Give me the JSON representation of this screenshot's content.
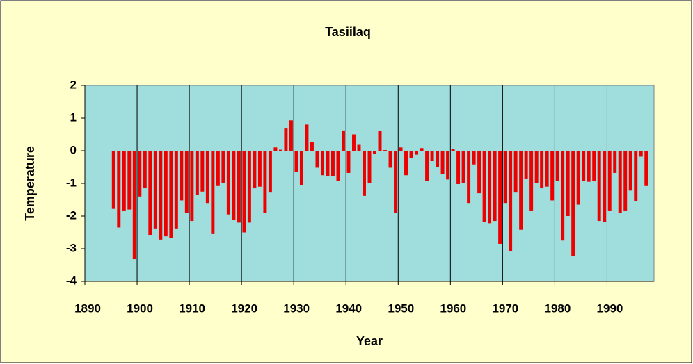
{
  "chart_data": {
    "type": "bar",
    "title": "Tasiilaq",
    "x_label": "Year",
    "y_label": "Temperature",
    "x": [
      1895,
      1896,
      1897,
      1898,
      1899,
      1900,
      1901,
      1902,
      1903,
      1904,
      1905,
      1906,
      1907,
      1908,
      1909,
      1910,
      1911,
      1912,
      1913,
      1914,
      1915,
      1916,
      1917,
      1918,
      1919,
      1920,
      1921,
      1922,
      1923,
      1924,
      1925,
      1926,
      1927,
      1928,
      1929,
      1930,
      1931,
      1932,
      1933,
      1934,
      1935,
      1936,
      1937,
      1938,
      1939,
      1940,
      1941,
      1942,
      1943,
      1944,
      1945,
      1946,
      1947,
      1948,
      1949,
      1950,
      1951,
      1952,
      1953,
      1954,
      1955,
      1956,
      1957,
      1958,
      1959,
      1960,
      1961,
      1962,
      1963,
      1964,
      1965,
      1966,
      1967,
      1968,
      1969,
      1970,
      1971,
      1972,
      1973,
      1974,
      1975,
      1976,
      1977,
      1978,
      1979,
      1980,
      1981,
      1982,
      1983,
      1984,
      1985,
      1986,
      1987,
      1988,
      1989,
      1990,
      1991,
      1992,
      1993,
      1994,
      1995,
      1996,
      1997
    ],
    "values": [
      -1.78,
      -2.35,
      -1.85,
      -1.8,
      -3.32,
      -1.4,
      -1.15,
      -2.58,
      -2.38,
      -2.72,
      -2.62,
      -2.68,
      -2.38,
      -1.52,
      -1.9,
      -2.15,
      -1.35,
      -1.25,
      -1.6,
      -2.55,
      -1.08,
      -1.0,
      -1.95,
      -2.12,
      -2.2,
      -2.5,
      -2.2,
      -1.15,
      -1.1,
      -1.9,
      -1.28,
      0.1,
      0.03,
      0.7,
      0.93,
      -0.65,
      -1.05,
      0.8,
      0.27,
      -0.52,
      -0.75,
      -0.78,
      -0.78,
      -0.92,
      0.62,
      -0.68,
      0.5,
      0.18,
      -1.38,
      -1.0,
      -0.1,
      0.6,
      0.02,
      -0.52,
      -1.9,
      0.1,
      -0.75,
      -0.22,
      -0.12,
      0.08,
      -0.92,
      -0.32,
      -0.5,
      -0.72,
      -0.88,
      0.05,
      -1.02,
      -1.0,
      -1.6,
      -0.42,
      -1.3,
      -2.18,
      -2.22,
      -2.15,
      -2.85,
      -1.6,
      -3.08,
      -1.28,
      -2.42,
      -0.85,
      -1.85,
      -1.0,
      -1.15,
      -1.1,
      -1.52,
      -0.92,
      -2.75,
      -2.0,
      -3.22,
      -1.65,
      -0.92,
      -0.95,
      -0.92,
      -2.15,
      -2.18,
      -1.85,
      -0.68,
      -1.9,
      -1.85,
      -1.22,
      -1.55,
      -0.18,
      -1.08
    ],
    "color": "#ee0000",
    "xlim": [
      1890,
      1999
    ],
    "xticks": [
      1890,
      1900,
      1910,
      1920,
      1930,
      1940,
      1950,
      1960,
      1970,
      1980,
      1990
    ],
    "ylim": [
      -4,
      2
    ],
    "yticks": [
      -4,
      -3,
      -2,
      -1,
      0,
      1,
      2
    ],
    "grid": "x"
  }
}
